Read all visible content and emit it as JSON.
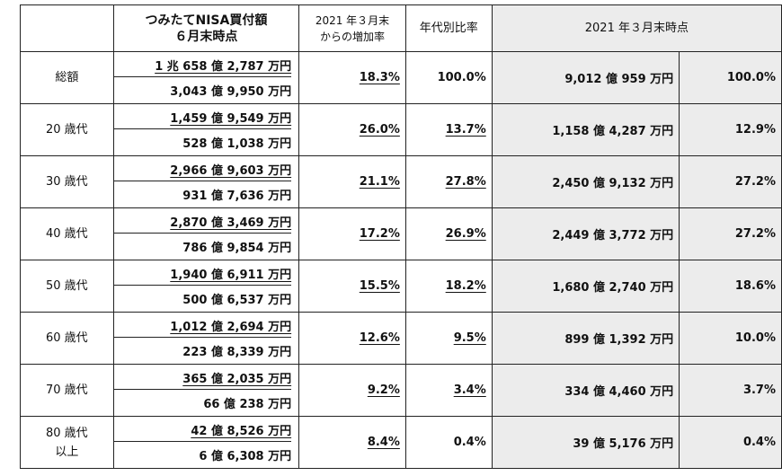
{
  "header": {
    "col_buy_line1": "つみたてNISA買付額",
    "col_buy_line2": "６月末時点",
    "col_increase_line1": "2021 年３月末",
    "col_increase_line2": "からの増加率",
    "col_ratio": "年代別比率",
    "col_march": "2021 年３月末時点"
  },
  "rows": [
    {
      "label": "総額",
      "label2": "",
      "amount": "1 兆 658 億 2,787 万円",
      "sub_amount": "3,043 億 9,950 万円",
      "increase": "18.3%",
      "ratio": "100.0%",
      "ratio_underlined": false,
      "march_amount": "9,012 億 959 万円",
      "march_ratio": "100.0%"
    },
    {
      "label": "20 歳代",
      "label2": "",
      "amount": "1,459 億 9,549 万円",
      "sub_amount": "528 億 1,038 万円",
      "increase": "26.0%",
      "ratio": "13.7%",
      "ratio_underlined": true,
      "march_amount": "1,158 億 4,287 万円",
      "march_ratio": "12.9%"
    },
    {
      "label": "30 歳代",
      "label2": "",
      "amount": "2,966 億 9,603 万円",
      "sub_amount": "931 億 7,636 万円",
      "increase": "21.1%",
      "ratio": "27.8%",
      "ratio_underlined": true,
      "march_amount": "2,450 億 9,132 万円",
      "march_ratio": "27.2%"
    },
    {
      "label": "40 歳代",
      "label2": "",
      "amount": "2,870 億 3,469 万円",
      "sub_amount": "786 億 9,854 万円",
      "increase": "17.2%",
      "ratio": "26.9%",
      "ratio_underlined": true,
      "march_amount": "2,449 億 3,772 万円",
      "march_ratio": "27.2%"
    },
    {
      "label": "50 歳代",
      "label2": "",
      "amount": "1,940 億 6,911 万円",
      "sub_amount": "500 億 6,537 万円",
      "increase": "15.5%",
      "ratio": "18.2%",
      "ratio_underlined": true,
      "march_amount": "1,680 億 2,740 万円",
      "march_ratio": "18.6%"
    },
    {
      "label": "60 歳代",
      "label2": "",
      "amount": "1,012 億 2,694 万円",
      "sub_amount": "223 億 8,339 万円",
      "increase": "12.6%",
      "ratio": "9.5%",
      "ratio_underlined": true,
      "march_amount": "899 億 1,392 万円",
      "march_ratio": "10.0%"
    },
    {
      "label": "70 歳代",
      "label2": "",
      "amount": "365 億 2,035 万円",
      "sub_amount": "66 億 238 万円",
      "increase": "9.2%",
      "ratio": "3.4%",
      "ratio_underlined": true,
      "march_amount": "334 億 4,460 万円",
      "march_ratio": "3.7%"
    },
    {
      "label": "80 歳代",
      "label2": "以上",
      "amount": "42 億 8,526 万円",
      "sub_amount": "6 億 6,308 万円",
      "increase": "8.4%",
      "ratio": "0.4%",
      "ratio_underlined": false,
      "march_amount": "39 億 5,176 万円",
      "march_ratio": "0.4%"
    }
  ]
}
